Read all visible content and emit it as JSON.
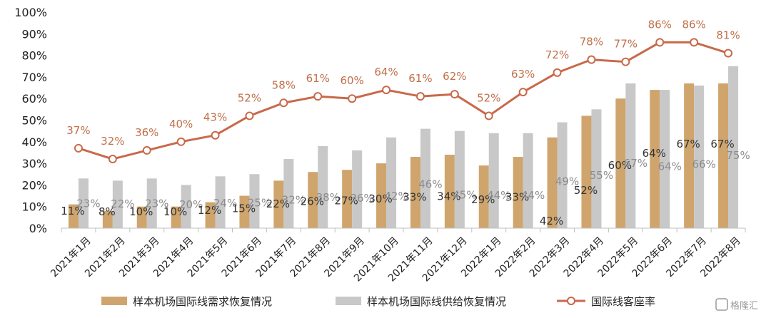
{
  "chart_data": {
    "type": "bar",
    "categories": [
      "2021年1月",
      "2021年2月",
      "2021年3月",
      "2021年4月",
      "2021年5月",
      "2021年6月",
      "2021年7月",
      "2021年8月",
      "2021年9月",
      "2021年10月",
      "2021年11月",
      "2021年12月",
      "2022年1月",
      "2022年2月",
      "2022年3月",
      "2022年4月",
      "2022年5月",
      "2022年6月",
      "2022年7月",
      "2022年8月"
    ],
    "series": [
      {
        "name": "样本机场国际线需求恢复情况",
        "kind": "bar",
        "color": "#cfa56d",
        "values": [
          11,
          8,
          10,
          10,
          12,
          15,
          22,
          26,
          27,
          30,
          33,
          34,
          29,
          33,
          42,
          52,
          60,
          64,
          67,
          67
        ]
      },
      {
        "name": "样本机场国际线供给恢复情况",
        "kind": "bar",
        "color": "#c8c8c8",
        "values": [
          23,
          22,
          23,
          20,
          24,
          25,
          32,
          38,
          36,
          42,
          46,
          45,
          44,
          44,
          49,
          55,
          67,
          64,
          66,
          75
        ]
      },
      {
        "name": "国际线客座率",
        "kind": "line",
        "color": "#c8694a",
        "values": [
          37,
          32,
          36,
          40,
          43,
          52,
          58,
          61,
          60,
          64,
          61,
          62,
          52,
          63,
          72,
          78,
          77,
          86,
          86,
          81
        ]
      }
    ],
    "ylim": [
      0,
      100
    ],
    "yticks": [
      "0%",
      "10%",
      "20%",
      "30%",
      "40%",
      "50%",
      "60%",
      "70%",
      "80%",
      "90%",
      "100%"
    ],
    "value_suffix": "%",
    "legend_position": "bottom"
  },
  "watermark": "格隆汇"
}
